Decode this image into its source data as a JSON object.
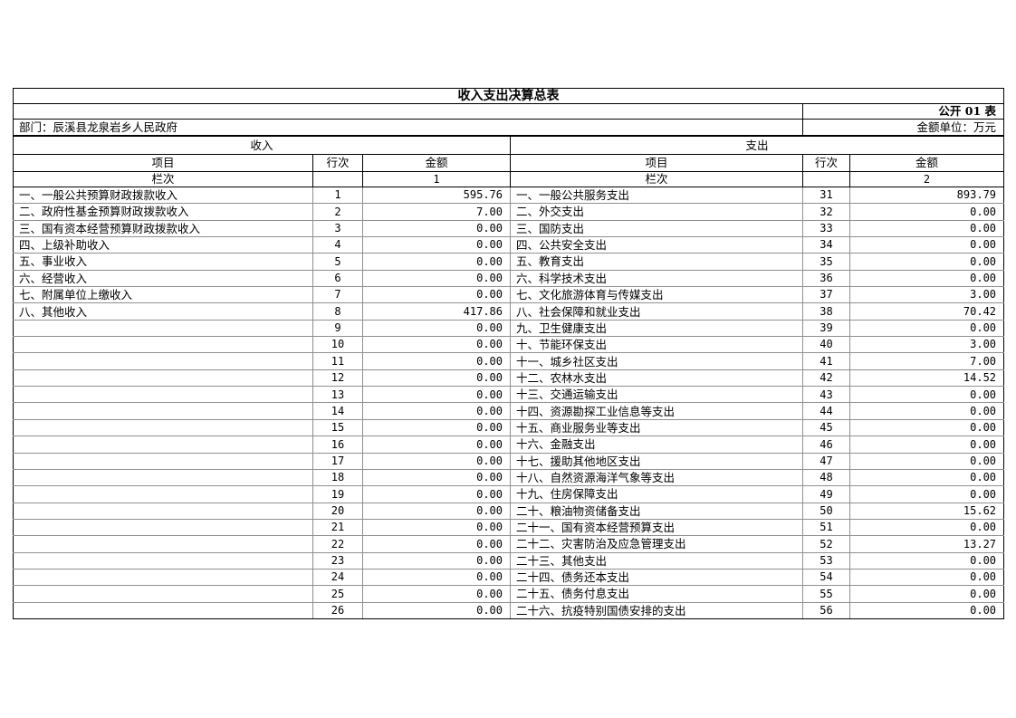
{
  "table": {
    "title": "收入支出决算总表",
    "sheet_label": "公开 01 表",
    "department": "部门：辰溪县龙泉岩乡人民政府",
    "unit_label": "金额单位：万元",
    "income_section_title": "收入",
    "expense_section_title": "支出",
    "columns": {
      "item": "项目",
      "line_no": "行次",
      "amount": "金额"
    },
    "column_index_label": "栏次",
    "income_column_index": "1",
    "expense_column_index": "2",
    "colors": {
      "outer_border": "#000000",
      "grid_line": "#8f8f8f",
      "background": "#ffffff"
    },
    "income_rows": [
      {
        "label": "一、一般公共预算财政拨款收入",
        "line": "1",
        "amount": "595.76"
      },
      {
        "label": "二、政府性基金预算财政拨款收入",
        "line": "2",
        "amount": "7.00"
      },
      {
        "label": "三、国有资本经营预算财政拨款收入",
        "line": "3",
        "amount": "0.00"
      },
      {
        "label": "四、上级补助收入",
        "line": "4",
        "amount": "0.00"
      },
      {
        "label": "五、事业收入",
        "line": "5",
        "amount": "0.00"
      },
      {
        "label": "六、经营收入",
        "line": "6",
        "amount": "0.00"
      },
      {
        "label": "七、附属单位上缴收入",
        "line": "7",
        "amount": "0.00"
      },
      {
        "label": "八、其他收入",
        "line": "8",
        "amount": "417.86"
      },
      {
        "label": "",
        "line": "9",
        "amount": "0.00"
      },
      {
        "label": "",
        "line": "10",
        "amount": "0.00"
      },
      {
        "label": "",
        "line": "11",
        "amount": "0.00"
      },
      {
        "label": "",
        "line": "12",
        "amount": "0.00"
      },
      {
        "label": "",
        "line": "13",
        "amount": "0.00"
      },
      {
        "label": "",
        "line": "14",
        "amount": "0.00"
      },
      {
        "label": "",
        "line": "15",
        "amount": "0.00"
      },
      {
        "label": "",
        "line": "16",
        "amount": "0.00"
      },
      {
        "label": "",
        "line": "17",
        "amount": "0.00"
      },
      {
        "label": "",
        "line": "18",
        "amount": "0.00"
      },
      {
        "label": "",
        "line": "19",
        "amount": "0.00"
      },
      {
        "label": "",
        "line": "20",
        "amount": "0.00"
      },
      {
        "label": "",
        "line": "21",
        "amount": "0.00"
      },
      {
        "label": "",
        "line": "22",
        "amount": "0.00"
      },
      {
        "label": "",
        "line": "23",
        "amount": "0.00"
      },
      {
        "label": "",
        "line": "24",
        "amount": "0.00"
      },
      {
        "label": "",
        "line": "25",
        "amount": "0.00"
      },
      {
        "label": "",
        "line": "26",
        "amount": "0.00"
      }
    ],
    "expense_rows": [
      {
        "label": "一、一般公共服务支出",
        "line": "31",
        "amount": "893.79"
      },
      {
        "label": "二、外交支出",
        "line": "32",
        "amount": "0.00"
      },
      {
        "label": "三、国防支出",
        "line": "33",
        "amount": "0.00"
      },
      {
        "label": "四、公共安全支出",
        "line": "34",
        "amount": "0.00"
      },
      {
        "label": "五、教育支出",
        "line": "35",
        "amount": "0.00"
      },
      {
        "label": "六、科学技术支出",
        "line": "36",
        "amount": "0.00"
      },
      {
        "label": "七、文化旅游体育与传媒支出",
        "line": "37",
        "amount": "3.00"
      },
      {
        "label": "八、社会保障和就业支出",
        "line": "38",
        "amount": "70.42"
      },
      {
        "label": "九、卫生健康支出",
        "line": "39",
        "amount": "0.00"
      },
      {
        "label": "十、节能环保支出",
        "line": "40",
        "amount": "3.00"
      },
      {
        "label": "十一、城乡社区支出",
        "line": "41",
        "amount": "7.00"
      },
      {
        "label": "十二、农林水支出",
        "line": "42",
        "amount": "14.52"
      },
      {
        "label": "十三、交通运输支出",
        "line": "43",
        "amount": "0.00"
      },
      {
        "label": "十四、资源勘探工业信息等支出",
        "line": "44",
        "amount": "0.00"
      },
      {
        "label": "十五、商业服务业等支出",
        "line": "45",
        "amount": "0.00"
      },
      {
        "label": "十六、金融支出",
        "line": "46",
        "amount": "0.00"
      },
      {
        "label": "十七、援助其他地区支出",
        "line": "47",
        "amount": "0.00"
      },
      {
        "label": "十八、自然资源海洋气象等支出",
        "line": "48",
        "amount": "0.00"
      },
      {
        "label": "十九、住房保障支出",
        "line": "49",
        "amount": "0.00"
      },
      {
        "label": "二十、粮油物资储备支出",
        "line": "50",
        "amount": "15.62"
      },
      {
        "label": "二十一、国有资本经营预算支出",
        "line": "51",
        "amount": "0.00"
      },
      {
        "label": "二十二、灾害防治及应急管理支出",
        "line": "52",
        "amount": "13.27"
      },
      {
        "label": "二十三、其他支出",
        "line": "53",
        "amount": "0.00"
      },
      {
        "label": "二十四、债务还本支出",
        "line": "54",
        "amount": "0.00"
      },
      {
        "label": "二十五、债务付息支出",
        "line": "55",
        "amount": "0.00"
      },
      {
        "label": "二十六、抗疫特别国债安排的支出",
        "line": "56",
        "amount": "0.00"
      }
    ]
  }
}
